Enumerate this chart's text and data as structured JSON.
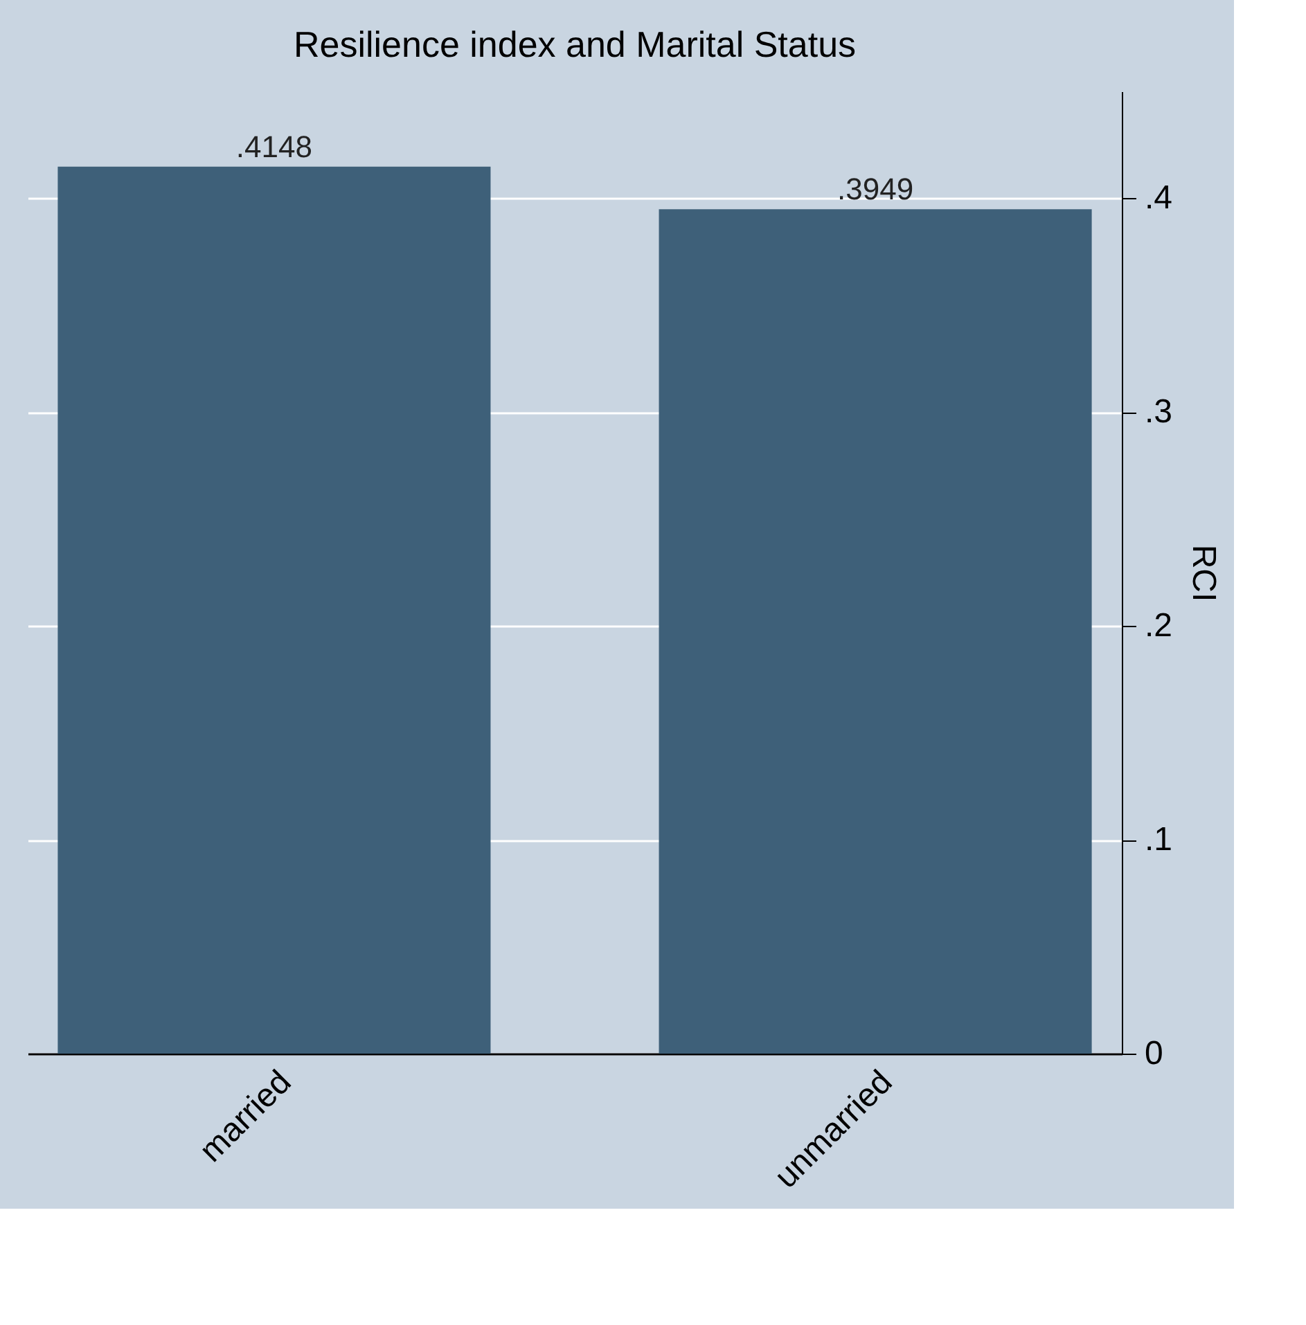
{
  "chart_data": {
    "type": "bar",
    "title": "Resilience index and Marital Status",
    "ylabel": "RCI",
    "categories": [
      "married",
      "unmarried"
    ],
    "values": [
      0.4148,
      0.3949
    ],
    "value_labels": [
      ".4148",
      ".3949"
    ],
    "color": "#3e6079",
    "ylim": [
      0,
      0.45
    ],
    "yticks": [
      0,
      {
        "value": 0.1,
        "label": ".1"
      },
      {
        "value": 0.2,
        "label": ".2"
      },
      {
        "value": 0.3,
        "label": ".3"
      },
      {
        "value": 0.4,
        "label": ".4"
      }
    ],
    "grid": "y"
  }
}
